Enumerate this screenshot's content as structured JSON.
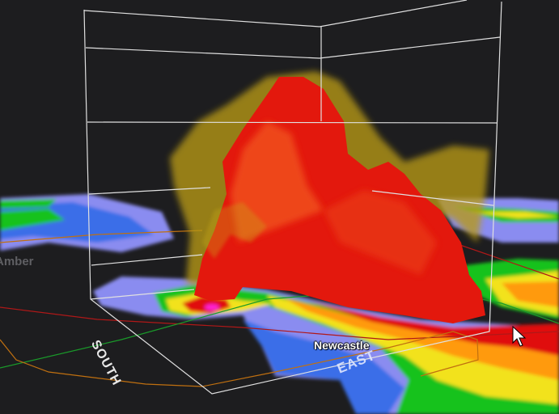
{
  "map_labels": {
    "city": "Newcastle",
    "partial_city": "Amber"
  },
  "axis_labels": {
    "south": "SOUTH",
    "east": "EAST"
  },
  "colors": {
    "background": "#1d1d1f",
    "reflectivity_low": "#8a8cf0",
    "reflectivity_mid_low": "#3a6ee8",
    "reflectivity_green": "#16c21a",
    "reflectivity_yellow": "#f2e21a",
    "reflectivity_orange": "#ff9a10",
    "reflectivity_red": "#e01010",
    "reflectivity_magenta": "#ff20d0",
    "isosurface_core": "#e8160c",
    "isosurface_outer": "#c8a818",
    "bounding_box": "#e0e0e0"
  },
  "icons": {
    "cursor": "mouse-pointer-icon"
  }
}
